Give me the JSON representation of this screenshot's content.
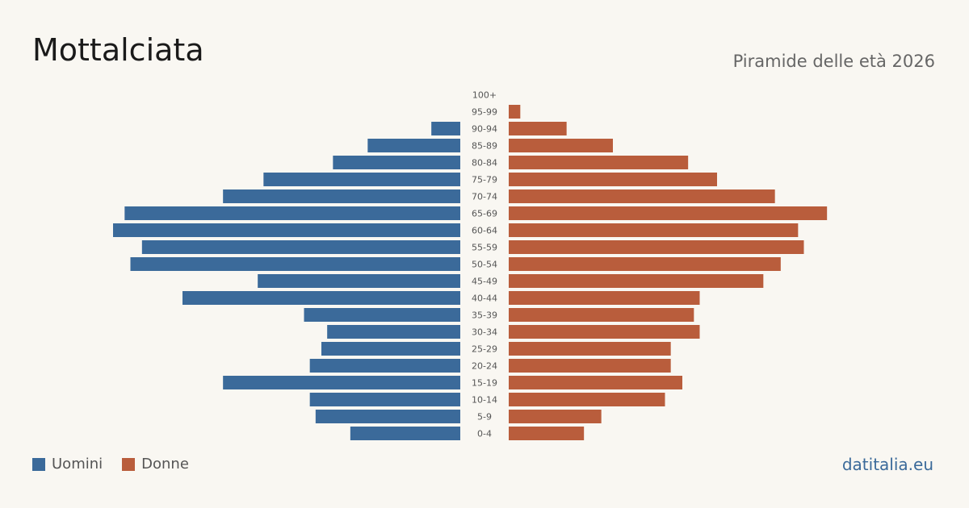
{
  "header": {
    "title": "Mottalciata",
    "subtitle": "Piramide delle età 2026"
  },
  "legend": {
    "men_label": "Uomini",
    "women_label": "Donne"
  },
  "source": "datitalia.eu",
  "colors": {
    "men": "#3b6a9a",
    "women": "#b95d3c",
    "background": "#f9f7f2"
  },
  "chart_data": {
    "type": "bar",
    "orientation": "horizontal-diverging",
    "categories": [
      "100+",
      "95-99",
      "90-94",
      "85-89",
      "80-84",
      "75-79",
      "70-74",
      "65-69",
      "60-64",
      "55-59",
      "50-54",
      "45-49",
      "40-44",
      "35-39",
      "30-34",
      "25-29",
      "20-24",
      "15-19",
      "10-14",
      "5-9",
      "0-4"
    ],
    "series": [
      {
        "name": "Uomini",
        "values": [
          0,
          0,
          5,
          16,
          22,
          34,
          41,
          58,
          60,
          55,
          57,
          35,
          48,
          27,
          23,
          24,
          26,
          41,
          26,
          25,
          19
        ]
      },
      {
        "name": "Donne",
        "values": [
          0,
          2,
          10,
          18,
          31,
          36,
          46,
          55,
          50,
          51,
          47,
          44,
          33,
          32,
          33,
          28,
          28,
          30,
          27,
          16,
          13
        ]
      }
    ],
    "xlim": [
      0,
      60
    ],
    "grid": false,
    "legend_position": "bottom-left"
  }
}
